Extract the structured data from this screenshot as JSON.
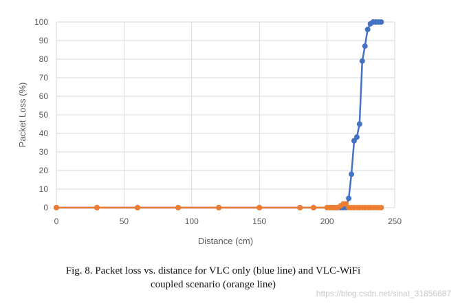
{
  "chart_data": {
    "type": "line",
    "title": "",
    "xlabel": "Distance (cm)",
    "ylabel": "Packet Loss (%)",
    "xlim": [
      0,
      250
    ],
    "ylim": [
      0,
      100
    ],
    "xticks": [
      0,
      50,
      100,
      150,
      200,
      250
    ],
    "yticks": [
      0,
      10,
      20,
      30,
      40,
      50,
      60,
      70,
      80,
      90,
      100
    ],
    "grid": true,
    "series": [
      {
        "name": "VLC only",
        "color": "#4472C4",
        "points": [
          [
            0,
            0
          ],
          [
            30,
            0
          ],
          [
            60,
            0
          ],
          [
            90,
            0
          ],
          [
            120,
            0
          ],
          [
            150,
            0
          ],
          [
            180,
            0
          ],
          [
            190,
            0
          ],
          [
            200,
            0
          ],
          [
            202,
            0
          ],
          [
            204,
            0
          ],
          [
            206,
            0
          ],
          [
            208,
            0
          ],
          [
            210,
            0
          ],
          [
            212,
            0
          ],
          [
            214,
            0
          ],
          [
            216,
            5
          ],
          [
            218,
            18
          ],
          [
            220,
            36
          ],
          [
            222,
            38
          ],
          [
            224,
            45
          ],
          [
            226,
            79
          ],
          [
            228,
            87
          ],
          [
            230,
            96
          ],
          [
            232,
            99
          ],
          [
            234,
            100
          ],
          [
            236,
            100
          ],
          [
            238,
            100
          ],
          [
            240,
            100
          ]
        ]
      },
      {
        "name": "VLC-WiFi coupled",
        "color": "#ED7D31",
        "points": [
          [
            0,
            0
          ],
          [
            30,
            0
          ],
          [
            60,
            0
          ],
          [
            90,
            0
          ],
          [
            120,
            0
          ],
          [
            150,
            0
          ],
          [
            180,
            0
          ],
          [
            190,
            0
          ],
          [
            200,
            0
          ],
          [
            202,
            0
          ],
          [
            204,
            0
          ],
          [
            206,
            0
          ],
          [
            208,
            0
          ],
          [
            210,
            1
          ],
          [
            212,
            2
          ],
          [
            214,
            2
          ],
          [
            216,
            0
          ],
          [
            218,
            0
          ],
          [
            220,
            0
          ],
          [
            222,
            0
          ],
          [
            224,
            0
          ],
          [
            226,
            0
          ],
          [
            228,
            0
          ],
          [
            230,
            0
          ],
          [
            232,
            0
          ],
          [
            234,
            0
          ],
          [
            236,
            0
          ],
          [
            238,
            0
          ],
          [
            240,
            0
          ]
        ]
      }
    ]
  },
  "caption": {
    "line1": "Fig. 8.   Packet loss vs. distance for VLC only (blue line) and VLC-WiFi",
    "line2": "coupled scenario (orange line)"
  },
  "watermark": "https://blog.csdn.net/sinat_31856687"
}
